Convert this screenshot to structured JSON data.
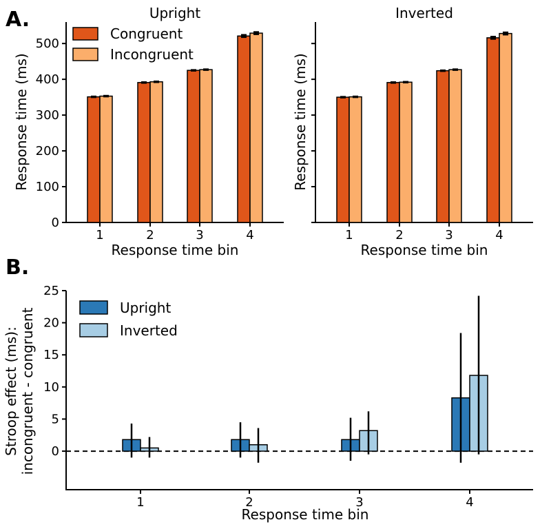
{
  "panel_labels": {
    "a": "A.",
    "b": "B."
  },
  "colors": {
    "congruent": "#e0561a",
    "incongruent": "#fbae6b",
    "upright": "#2b79b6",
    "inverted": "#a7cde4"
  },
  "chart_data": [
    {
      "id": "A-upright",
      "type": "bar",
      "title": "Upright",
      "xlabel": "Response time bin",
      "ylabel": "Response time (ms)",
      "categories": [
        "1",
        "2",
        "3",
        "4"
      ],
      "ylim": [
        0,
        560
      ],
      "yticks": [
        0,
        100,
        200,
        300,
        400,
        500
      ],
      "legend": [
        "Congruent",
        "Incongruent"
      ],
      "legend_location": "top-left",
      "series": [
        {
          "name": "Congruent",
          "values": [
            351,
            391,
            425,
            521
          ],
          "err": [
            1,
            1,
            1,
            3
          ]
        },
        {
          "name": "Incongruent",
          "values": [
            353,
            393,
            427,
            529
          ],
          "err": [
            1,
            1,
            1,
            3
          ]
        }
      ]
    },
    {
      "id": "A-inverted",
      "type": "bar",
      "title": "Inverted",
      "xlabel": "Response time bin",
      "ylabel": "Response time (ms)",
      "categories": [
        "1",
        "2",
        "3",
        "4"
      ],
      "ylim": [
        0,
        560
      ],
      "yticks": [
        0,
        100,
        200,
        300,
        400,
        500
      ],
      "series": [
        {
          "name": "Congruent",
          "values": [
            350,
            391,
            424,
            516
          ],
          "err": [
            1,
            1,
            1,
            3
          ]
        },
        {
          "name": "Incongruent",
          "values": [
            351,
            392,
            427,
            528
          ],
          "err": [
            1,
            1,
            1,
            3
          ]
        }
      ]
    },
    {
      "id": "B",
      "type": "bar",
      "title": "",
      "xlabel": "Response time bin",
      "ylabel_line1": "Stroop effect (ms):",
      "ylabel_line2": "incongruent - congruent",
      "categories": [
        "1",
        "2",
        "3",
        "4"
      ],
      "ylim": [
        -6,
        25
      ],
      "yticks": [
        0,
        5,
        10,
        15,
        20,
        25
      ],
      "zero_line": true,
      "legend": [
        "Upright",
        "Inverted"
      ],
      "legend_location": "top-left",
      "series": [
        {
          "name": "Upright",
          "values": [
            1.8,
            1.8,
            1.8,
            8.3
          ],
          "ci_low": [
            -1.0,
            -1.0,
            -1.5,
            -1.8
          ],
          "ci_high": [
            4.3,
            4.5,
            5.2,
            18.4
          ]
        },
        {
          "name": "Inverted",
          "values": [
            0.5,
            1.0,
            3.2,
            11.8
          ],
          "ci_low": [
            -1.0,
            -1.8,
            -0.5,
            -0.5
          ],
          "ci_high": [
            2.2,
            3.6,
            6.2,
            24.2
          ]
        }
      ]
    }
  ]
}
